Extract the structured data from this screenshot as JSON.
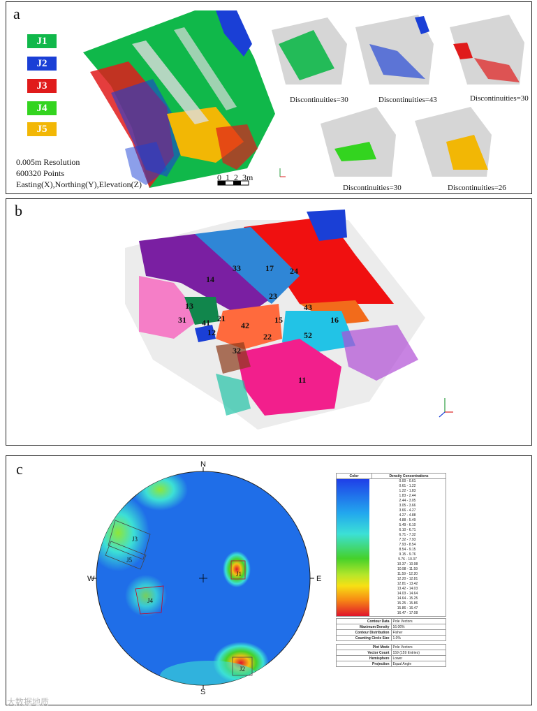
{
  "panel_a": {
    "label": "a",
    "legend": [
      {
        "name": "J1",
        "color": "#10b84a"
      },
      {
        "name": "J2",
        "color": "#1a3fd6"
      },
      {
        "name": "J3",
        "color": "#e01b1b"
      },
      {
        "name": "J4",
        "color": "#33d41f"
      },
      {
        "name": "J5",
        "color": "#f2b705"
      }
    ],
    "resolution": "0.005m Resolution",
    "points": "600320 Points",
    "axes_text": "Easting(X),Northing(Y),Elevation(Z)",
    "scale_numbers": [
      "0",
      "1",
      "2",
      "3m"
    ],
    "discontinuities": [
      "Discontinuities=30",
      "Discontinuities=43",
      "Discontinuities=30",
      "Discontinuities=30",
      "Discontinuities=26"
    ]
  },
  "panel_b": {
    "label": "b",
    "numbers": [
      "33",
      "17",
      "24",
      "14",
      "23",
      "43",
      "13",
      "15",
      "16",
      "31",
      "41",
      "21",
      "42",
      "12",
      "52",
      "22",
      "32",
      "11"
    ],
    "axis": {
      "x": "X",
      "y": "Y",
      "z": "Z"
    }
  },
  "panel_c": {
    "label": "c",
    "compass": {
      "n": "N",
      "s": "S",
      "e": "E",
      "w": "W"
    },
    "set_labels": [
      "J3",
      "J5",
      "J4",
      "J1",
      "J2"
    ],
    "table_header": [
      "Color",
      "Density Concentrations"
    ],
    "density_ranges": [
      "0.00 - 0.61",
      "0.61 - 1.22",
      "1.22 - 1.83",
      "1.83 - 2.44",
      "2.44 - 3.05",
      "3.05 - 3.66",
      "3.66 - 4.27",
      "4.27 - 4.88",
      "4.88 - 5.49",
      "5.49 - 6.10",
      "6.10 - 6.71",
      "6.71 - 7.32",
      "7.32 - 7.93",
      "7.93 - 8.54",
      "8.54 - 9.15",
      "9.15 - 9.76",
      "9.76 - 10.37",
      "10.37 - 10.98",
      "10.98 - 11.59",
      "11.59 - 12.20",
      "12.20 - 12.81",
      "12.81 - 13.42",
      "13.42 - 14.03",
      "14.03 - 14.64",
      "14.64 - 15.25",
      "15.25 - 15.86",
      "15.86 - 16.47",
      "16.47 - 17.08"
    ],
    "contour_info": [
      {
        "k": "Contour Data",
        "v": "Pole Vectors"
      },
      {
        "k": "Maximum Density",
        "v": "16.06%"
      },
      {
        "k": "Contour Distribution",
        "v": "Fisher"
      },
      {
        "k": "Counting Circle Size",
        "v": "1.0%"
      }
    ],
    "plot_info": [
      {
        "k": "Plot Mode",
        "v": "Pole Vectors"
      },
      {
        "k": "Vector Count",
        "v": "159 (159 Entries)"
      },
      {
        "k": "Hemisphere",
        "v": "Lower"
      },
      {
        "k": "Projection",
        "v": "Equal Angle"
      }
    ]
  },
  "watermark": "大数据地质"
}
